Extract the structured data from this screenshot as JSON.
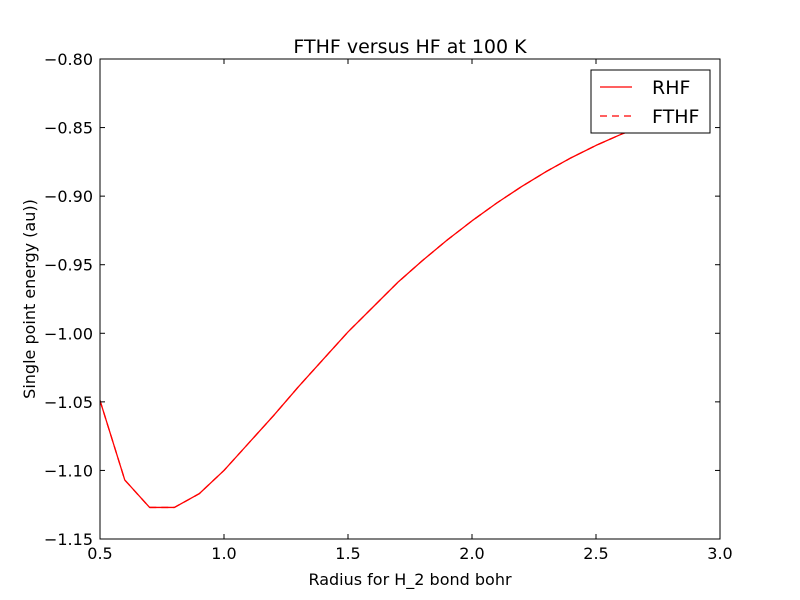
{
  "chart_data": {
    "type": "line",
    "title": "FTHF versus HF at 100 K",
    "xlabel": "Radius for H_2 bond bohr",
    "ylabel": "Single point energy (au))",
    "xlim": [
      0.5,
      3.0
    ],
    "ylim": [
      -1.15,
      -0.8
    ],
    "xticks": [
      0.5,
      1.0,
      1.5,
      2.0,
      2.5,
      3.0
    ],
    "xtick_labels": [
      "0.5",
      "1.0",
      "1.5",
      "2.0",
      "2.5",
      "3.0"
    ],
    "yticks": [
      -1.15,
      -1.1,
      -1.05,
      -1.0,
      -0.95,
      -0.9,
      -0.85,
      -0.8
    ],
    "ytick_labels": [
      "−1.15",
      "−1.10",
      "−1.05",
      "−1.00",
      "−0.95",
      "−0.90",
      "−0.85",
      "−0.80"
    ],
    "grid": false,
    "legend_position": "top-right",
    "series": [
      {
        "name": "RHF",
        "color": "#ff0000",
        "linestyle": "solid",
        "x": [
          0.5,
          0.6,
          0.7,
          0.8,
          0.9,
          1.0,
          1.1,
          1.2,
          1.3,
          1.4,
          1.5,
          1.6,
          1.7,
          1.8,
          1.9,
          2.0,
          2.1,
          2.2,
          2.3,
          2.4,
          2.5,
          2.6,
          2.7
        ],
        "y": [
          -1.049,
          -1.107,
          -1.127,
          -1.127,
          -1.117,
          -1.1,
          -1.08,
          -1.06,
          -1.039,
          -1.019,
          -0.999,
          -0.981,
          -0.963,
          -0.947,
          -0.932,
          -0.918,
          -0.905,
          -0.893,
          -0.882,
          -0.872,
          -0.863,
          -0.855,
          -0.848
        ]
      },
      {
        "name": "FTHF",
        "color": "#ff0000",
        "linestyle": "dashed",
        "x": [
          0.5,
          0.6,
          0.7,
          0.8,
          0.9,
          1.0,
          1.1,
          1.2,
          1.3,
          1.4,
          1.5,
          1.6,
          1.7,
          1.8,
          1.9,
          2.0,
          2.1,
          2.2,
          2.3,
          2.4,
          2.5,
          2.6,
          2.7
        ],
        "y": [
          -1.049,
          -1.107,
          -1.127,
          -1.127,
          -1.117,
          -1.1,
          -1.08,
          -1.06,
          -1.039,
          -1.019,
          -0.999,
          -0.981,
          -0.963,
          -0.947,
          -0.932,
          -0.918,
          -0.905,
          -0.893,
          -0.882,
          -0.872,
          -0.863,
          -0.855,
          -0.848
        ]
      }
    ]
  }
}
